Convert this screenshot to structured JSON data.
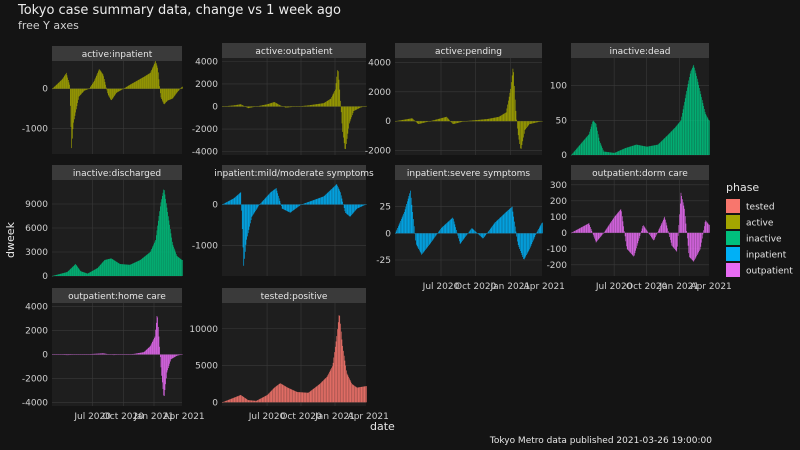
{
  "title": "Tokyo case summary data, change vs 1 week ago",
  "subtitle": "free Y axes",
  "caption": "Tokyo Metro data published 2021-03-26 19:00:00",
  "colors": {
    "tested": "#F8766D",
    "active": "#A3A500",
    "inactive": "#00BF7D",
    "inpatient": "#00B0F6",
    "outpatient": "#E76BF3"
  },
  "chart_data": {
    "type": "bar",
    "title": "Tokyo case summary data, change vs 1 week ago",
    "subtitle": "free Y axes",
    "xlabel": "date",
    "ylabel": "dweek",
    "x_ticks": [
      "Jul 2020",
      "Oct 2020",
      "Jan 2021",
      "Apr 2021"
    ],
    "x_range": [
      "2020-03-01",
      "2021-03-26"
    ],
    "legend": {
      "title": "phase",
      "placement": "right",
      "entries": [
        "tested",
        "active",
        "inactive",
        "inpatient",
        "outpatient"
      ]
    },
    "grid": true,
    "facets": [
      {
        "label": "active:inpatient",
        "phase": "active",
        "ylim": [
          -1650,
          700
        ],
        "y_ticks": [
          0,
          -1000
        ],
        "series": [
          [
            "2020-03-01",
            0
          ],
          [
            "2020-03-20",
            150
          ],
          [
            "2020-04-01",
            250
          ],
          [
            "2020-04-12",
            400
          ],
          [
            "2020-04-22",
            100
          ],
          [
            "2020-04-28",
            -1500
          ],
          [
            "2020-05-03",
            -900
          ],
          [
            "2020-05-10",
            -600
          ],
          [
            "2020-05-20",
            -200
          ],
          [
            "2020-06-05",
            -50
          ],
          [
            "2020-06-20",
            0
          ],
          [
            "2020-07-05",
            200
          ],
          [
            "2020-07-20",
            500
          ],
          [
            "2020-08-01",
            350
          ],
          [
            "2020-08-15",
            -150
          ],
          [
            "2020-08-25",
            -300
          ],
          [
            "2020-09-10",
            -100
          ],
          [
            "2020-10-01",
            0
          ],
          [
            "2020-10-20",
            100
          ],
          [
            "2020-11-10",
            200
          ],
          [
            "2020-12-01",
            300
          ],
          [
            "2020-12-20",
            400
          ],
          [
            "2021-01-05",
            700
          ],
          [
            "2021-01-12",
            500
          ],
          [
            "2021-01-20",
            -200
          ],
          [
            "2021-01-30",
            -400
          ],
          [
            "2021-02-10",
            -300
          ],
          [
            "2021-02-25",
            -250
          ],
          [
            "2021-03-10",
            -100
          ],
          [
            "2021-03-25",
            50
          ]
        ]
      },
      {
        "label": "active:outpatient",
        "phase": "active",
        "ylim": [
          -4300,
          4300
        ],
        "y_ticks": [
          4000,
          2000,
          0,
          -2000,
          -4000
        ],
        "series": [
          [
            "2020-03-01",
            0
          ],
          [
            "2020-04-01",
            100
          ],
          [
            "2020-04-20",
            200
          ],
          [
            "2020-05-10",
            -150
          ],
          [
            "2020-06-01",
            0
          ],
          [
            "2020-07-01",
            200
          ],
          [
            "2020-07-20",
            400
          ],
          [
            "2020-08-05",
            100
          ],
          [
            "2020-08-20",
            -100
          ],
          [
            "2020-09-20",
            0
          ],
          [
            "2020-10-20",
            100
          ],
          [
            "2020-11-10",
            200
          ],
          [
            "2020-12-01",
            300
          ],
          [
            "2020-12-20",
            700
          ],
          [
            "2021-01-01",
            1500
          ],
          [
            "2021-01-08",
            3500
          ],
          [
            "2021-01-12",
            2000
          ],
          [
            "2021-01-20",
            -2000
          ],
          [
            "2021-01-28",
            -4000
          ],
          [
            "2021-02-08",
            -1500
          ],
          [
            "2021-02-20",
            -400
          ],
          [
            "2021-03-10",
            -100
          ],
          [
            "2021-03-25",
            50
          ]
        ]
      },
      {
        "label": "active:pending",
        "phase": "active",
        "ylim": [
          -2300,
          4300
        ],
        "y_ticks": [
          4000,
          2000,
          0,
          -2000
        ],
        "series": [
          [
            "2020-03-01",
            0
          ],
          [
            "2020-04-15",
            200
          ],
          [
            "2020-05-01",
            -200
          ],
          [
            "2020-06-01",
            0
          ],
          [
            "2020-07-15",
            300
          ],
          [
            "2020-08-01",
            -200
          ],
          [
            "2020-09-01",
            0
          ],
          [
            "2020-11-01",
            150
          ],
          [
            "2020-12-01",
            300
          ],
          [
            "2020-12-20",
            600
          ],
          [
            "2021-01-01",
            2200
          ],
          [
            "2021-01-08",
            3800
          ],
          [
            "2021-01-14",
            1000
          ],
          [
            "2021-01-20",
            -800
          ],
          [
            "2021-01-28",
            -2000
          ],
          [
            "2021-02-08",
            -600
          ],
          [
            "2021-02-20",
            -200
          ],
          [
            "2021-03-25",
            0
          ]
        ]
      },
      {
        "label": "inactive:dead",
        "phase": "inactive",
        "ylim": [
          0,
          140
        ],
        "y_ticks": [
          100,
          50,
          0
        ],
        "series": [
          [
            "2020-03-01",
            0
          ],
          [
            "2020-04-20",
            30
          ],
          [
            "2020-05-01",
            50
          ],
          [
            "2020-05-10",
            45
          ],
          [
            "2020-05-20",
            20
          ],
          [
            "2020-06-01",
            5
          ],
          [
            "2020-07-01",
            3
          ],
          [
            "2020-08-01",
            10
          ],
          [
            "2020-09-01",
            15
          ],
          [
            "2020-10-01",
            12
          ],
          [
            "2020-11-01",
            15
          ],
          [
            "2020-12-01",
            30
          ],
          [
            "2020-12-20",
            40
          ],
          [
            "2021-01-05",
            50
          ],
          [
            "2021-01-20",
            90
          ],
          [
            "2021-02-01",
            120
          ],
          [
            "2021-02-10",
            130
          ],
          [
            "2021-02-20",
            110
          ],
          [
            "2021-03-01",
            90
          ],
          [
            "2021-03-15",
            60
          ],
          [
            "2021-03-25",
            50
          ]
        ]
      },
      {
        "label": "inactive:discharged",
        "phase": "inactive",
        "ylim": [
          0,
          12000
        ],
        "y_ticks": [
          9000,
          6000,
          3000,
          0
        ],
        "series": [
          [
            "2020-03-01",
            0
          ],
          [
            "2020-04-15",
            500
          ],
          [
            "2020-05-10",
            1500
          ],
          [
            "2020-05-25",
            600
          ],
          [
            "2020-06-15",
            300
          ],
          [
            "2020-07-15",
            1000
          ],
          [
            "2020-08-05",
            2000
          ],
          [
            "2020-08-25",
            2200
          ],
          [
            "2020-09-20",
            1500
          ],
          [
            "2020-10-20",
            1400
          ],
          [
            "2020-11-20",
            2000
          ],
          [
            "2020-12-20",
            3000
          ],
          [
            "2021-01-05",
            4500
          ],
          [
            "2021-01-20",
            9000
          ],
          [
            "2021-01-30",
            11000
          ],
          [
            "2021-02-10",
            8000
          ],
          [
            "2021-02-25",
            4000
          ],
          [
            "2021-03-10",
            2500
          ],
          [
            "2021-03-25",
            2000
          ]
        ]
      },
      {
        "label": "inpatient:mild/moderate symptoms",
        "phase": "inpatient",
        "ylim": [
          -1750,
          600
        ],
        "y_ticks": [
          0,
          -1000
        ],
        "series": [
          [
            "2020-03-01",
            0
          ],
          [
            "2020-04-01",
            150
          ],
          [
            "2020-04-20",
            300
          ],
          [
            "2020-04-28",
            -1500
          ],
          [
            "2020-05-05",
            -900
          ],
          [
            "2020-05-20",
            -300
          ],
          [
            "2020-06-10",
            0
          ],
          [
            "2020-07-10",
            300
          ],
          [
            "2020-07-25",
            400
          ],
          [
            "2020-08-10",
            -100
          ],
          [
            "2020-09-01",
            -200
          ],
          [
            "2020-10-01",
            0
          ],
          [
            "2020-11-01",
            100
          ],
          [
            "2020-12-01",
            200
          ],
          [
            "2021-01-05",
            500
          ],
          [
            "2021-01-15",
            300
          ],
          [
            "2021-01-28",
            -200
          ],
          [
            "2021-02-10",
            -300
          ],
          [
            "2021-03-01",
            -100
          ],
          [
            "2021-03-25",
            0
          ]
        ]
      },
      {
        "label": "inpatient:severe symptoms",
        "phase": "inpatient",
        "ylim": [
          -40,
          50
        ],
        "y_ticks": [
          25,
          0,
          -25
        ],
        "series": [
          [
            "2020-03-01",
            0
          ],
          [
            "2020-03-25",
            20
          ],
          [
            "2020-04-10",
            40
          ],
          [
            "2020-04-25",
            -10
          ],
          [
            "2020-05-10",
            -20
          ],
          [
            "2020-06-01",
            -10
          ],
          [
            "2020-07-01",
            5
          ],
          [
            "2020-08-01",
            15
          ],
          [
            "2020-08-20",
            -10
          ],
          [
            "2020-09-20",
            5
          ],
          [
            "2020-10-20",
            -5
          ],
          [
            "2020-11-20",
            10
          ],
          [
            "2020-12-20",
            20
          ],
          [
            "2021-01-05",
            25
          ],
          [
            "2021-01-20",
            -10
          ],
          [
            "2021-02-05",
            -25
          ],
          [
            "2021-02-20",
            -15
          ],
          [
            "2021-03-10",
            0
          ],
          [
            "2021-03-25",
            10
          ]
        ]
      },
      {
        "label": "outpatient:dorm care",
        "phase": "outpatient",
        "ylim": [
          -270,
          330
        ],
        "y_ticks": [
          300,
          200,
          100,
          0,
          -100,
          -200
        ],
        "series": [
          [
            "2020-03-01",
            0
          ],
          [
            "2020-04-20",
            60
          ],
          [
            "2020-05-10",
            -60
          ],
          [
            "2020-06-01",
            0
          ],
          [
            "2020-07-01",
            100
          ],
          [
            "2020-07-20",
            150
          ],
          [
            "2020-08-05",
            -100
          ],
          [
            "2020-08-25",
            -150
          ],
          [
            "2020-09-20",
            50
          ],
          [
            "2020-10-20",
            -50
          ],
          [
            "2020-11-20",
            100
          ],
          [
            "2020-12-10",
            -80
          ],
          [
            "2020-12-25",
            -120
          ],
          [
            "2021-01-05",
            250
          ],
          [
            "2021-01-15",
            150
          ],
          [
            "2021-01-28",
            -150
          ],
          [
            "2021-02-10",
            -180
          ],
          [
            "2021-03-01",
            -100
          ],
          [
            "2021-03-15",
            80
          ],
          [
            "2021-03-25",
            50
          ]
        ]
      },
      {
        "label": "outpatient:home care",
        "phase": "outpatient",
        "ylim": [
          -4300,
          4300
        ],
        "y_ticks": [
          4000,
          2000,
          0,
          -2000,
          -4000
        ],
        "series": [
          [
            "2020-03-01",
            0
          ],
          [
            "2020-04-15",
            -50
          ],
          [
            "2020-05-15",
            -20
          ],
          [
            "2020-07-01",
            50
          ],
          [
            "2020-08-01",
            100
          ],
          [
            "2020-09-01",
            -50
          ],
          [
            "2020-10-01",
            0
          ],
          [
            "2020-11-01",
            50
          ],
          [
            "2020-12-01",
            200
          ],
          [
            "2020-12-20",
            700
          ],
          [
            "2021-01-03",
            1500
          ],
          [
            "2021-01-10",
            3500
          ],
          [
            "2021-01-15",
            1500
          ],
          [
            "2021-01-22",
            -1500
          ],
          [
            "2021-01-30",
            -3700
          ],
          [
            "2021-02-08",
            -1500
          ],
          [
            "2021-02-20",
            -400
          ],
          [
            "2021-03-10",
            -100
          ],
          [
            "2021-03-25",
            0
          ]
        ]
      },
      {
        "label": "tested:positive",
        "phase": "tested",
        "ylim": [
          -500,
          13500
        ],
        "y_ticks": [
          10000,
          5000,
          0
        ],
        "series": [
          [
            "2020-03-01",
            0
          ],
          [
            "2020-04-10",
            800
          ],
          [
            "2020-04-20",
            1000
          ],
          [
            "2020-05-10",
            300
          ],
          [
            "2020-06-01",
            200
          ],
          [
            "2020-07-01",
            1000
          ],
          [
            "2020-07-20",
            2000
          ],
          [
            "2020-08-05",
            2600
          ],
          [
            "2020-08-25",
            2000
          ],
          [
            "2020-09-20",
            1400
          ],
          [
            "2020-10-20",
            1300
          ],
          [
            "2020-11-20",
            2500
          ],
          [
            "2020-12-10",
            3500
          ],
          [
            "2020-12-25",
            5000
          ],
          [
            "2021-01-05",
            9000
          ],
          [
            "2021-01-12",
            12300
          ],
          [
            "2021-01-20",
            8000
          ],
          [
            "2021-02-01",
            4000
          ],
          [
            "2021-02-15",
            2500
          ],
          [
            "2021-03-01",
            2000
          ],
          [
            "2021-03-25",
            2200
          ]
        ]
      }
    ]
  }
}
